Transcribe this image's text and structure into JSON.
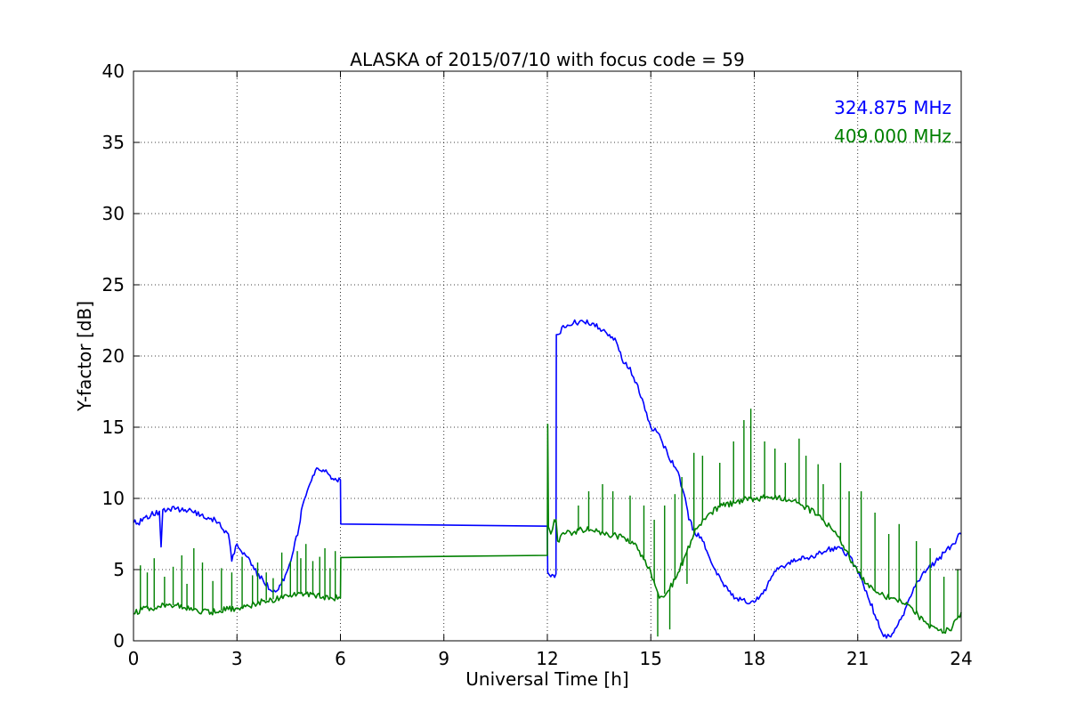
{
  "chart_data": {
    "type": "line",
    "title": "ALASKA of 2015/07/10 with focus code = 59",
    "xlabel": "Universal Time [h]",
    "ylabel": "Y-factor [dB]",
    "xlim": [
      0,
      24
    ],
    "ylim": [
      0,
      40
    ],
    "xticks": [
      0,
      3,
      6,
      9,
      12,
      15,
      18,
      21,
      24
    ],
    "yticks": [
      0,
      5,
      10,
      15,
      20,
      25,
      30,
      35,
      40
    ],
    "xtick_labels": [
      "0",
      "3",
      "6",
      "9",
      "12",
      "15",
      "18",
      "21",
      "24"
    ],
    "ytick_labels": [
      "0",
      "5",
      "10",
      "15",
      "20",
      "25",
      "30",
      "35",
      "40"
    ],
    "grid": true,
    "legend_position": "top-right",
    "series": [
      {
        "name": "324.875 MHz",
        "color": "#0000ff",
        "legend_label": "324.875 MHz",
        "points": [
          [
            0.0,
            8.3
          ],
          [
            0.25,
            8.4
          ],
          [
            0.5,
            8.8
          ],
          [
            0.75,
            9.1
          ],
          [
            0.8,
            6.6
          ],
          [
            0.85,
            9.2
          ],
          [
            1.0,
            9.3
          ],
          [
            1.25,
            9.3
          ],
          [
            1.5,
            9.2
          ],
          [
            1.75,
            9.0
          ],
          [
            2.0,
            8.9
          ],
          [
            2.25,
            8.6
          ],
          [
            2.5,
            8.3
          ],
          [
            2.6,
            7.8
          ],
          [
            2.75,
            7.5
          ],
          [
            2.85,
            5.6
          ],
          [
            3.0,
            6.8
          ],
          [
            3.25,
            6.0
          ],
          [
            3.5,
            5.0
          ],
          [
            3.75,
            4.3
          ],
          [
            4.0,
            3.5
          ],
          [
            4.2,
            3.6
          ],
          [
            4.4,
            4.6
          ],
          [
            4.6,
            6.0
          ],
          [
            4.8,
            8.0
          ],
          [
            4.9,
            9.5
          ],
          [
            5.0,
            10.2
          ],
          [
            5.2,
            11.6
          ],
          [
            5.35,
            12.1
          ],
          [
            5.5,
            12.0
          ],
          [
            5.7,
            11.6
          ],
          [
            5.85,
            11.4
          ],
          [
            6.0,
            11.3
          ],
          [
            6.01,
            8.2
          ],
          [
            12.0,
            8.05
          ],
          [
            12.01,
            4.8
          ],
          [
            12.1,
            4.5
          ],
          [
            12.25,
            4.7
          ],
          [
            12.26,
            21.5
          ],
          [
            12.5,
            22.0
          ],
          [
            12.75,
            22.3
          ],
          [
            13.0,
            22.5
          ],
          [
            13.3,
            22.3
          ],
          [
            13.6,
            21.8
          ],
          [
            13.8,
            21.5
          ],
          [
            14.0,
            21.0
          ],
          [
            14.2,
            19.5
          ],
          [
            14.4,
            19.2
          ],
          [
            14.5,
            18.5
          ],
          [
            14.75,
            17.0
          ],
          [
            15.0,
            15.0
          ],
          [
            15.25,
            14.5
          ],
          [
            15.5,
            13.0
          ],
          [
            15.75,
            12.0
          ],
          [
            16.0,
            10.0
          ],
          [
            16.1,
            8.5
          ],
          [
            16.25,
            7.8
          ],
          [
            16.5,
            7.0
          ],
          [
            16.75,
            5.5
          ],
          [
            17.0,
            4.5
          ],
          [
            17.25,
            3.5
          ],
          [
            17.5,
            3.0
          ],
          [
            17.75,
            2.7
          ],
          [
            18.0,
            2.7
          ],
          [
            18.25,
            3.3
          ],
          [
            18.5,
            4.5
          ],
          [
            18.75,
            5.2
          ],
          [
            19.0,
            5.5
          ],
          [
            19.5,
            5.8
          ],
          [
            20.0,
            6.2
          ],
          [
            20.25,
            6.5
          ],
          [
            20.5,
            6.5
          ],
          [
            20.75,
            6.0
          ],
          [
            21.0,
            4.8
          ],
          [
            21.25,
            3.5
          ],
          [
            21.5,
            1.8
          ],
          [
            21.75,
            0.3
          ],
          [
            22.0,
            0.5
          ],
          [
            22.25,
            1.5
          ],
          [
            22.5,
            3.0
          ],
          [
            22.75,
            4.2
          ],
          [
            23.0,
            5.0
          ],
          [
            23.25,
            5.5
          ],
          [
            23.5,
            6.2
          ],
          [
            23.75,
            6.8
          ],
          [
            24.0,
            7.5
          ]
        ]
      },
      {
        "name": "409.000 MHz",
        "color": "#008000",
        "legend_label": "409.000 MHz",
        "points": [
          [
            0.0,
            1.9
          ],
          [
            0.25,
            2.2
          ],
          [
            0.5,
            2.3
          ],
          [
            0.75,
            2.4
          ],
          [
            1.0,
            2.5
          ],
          [
            1.25,
            2.5
          ],
          [
            1.5,
            2.3
          ],
          [
            1.75,
            2.2
          ],
          [
            2.0,
            2.1
          ],
          [
            2.25,
            2.0
          ],
          [
            2.5,
            2.1
          ],
          [
            2.75,
            2.2
          ],
          [
            3.0,
            2.3
          ],
          [
            3.25,
            2.4
          ],
          [
            3.5,
            2.6
          ],
          [
            3.75,
            2.8
          ],
          [
            4.0,
            2.9
          ],
          [
            4.25,
            3.0
          ],
          [
            4.5,
            3.1
          ],
          [
            4.75,
            3.3
          ],
          [
            5.0,
            3.3
          ],
          [
            5.25,
            3.2
          ],
          [
            5.5,
            3.1
          ],
          [
            5.75,
            3.0
          ],
          [
            6.0,
            3.0
          ],
          [
            6.01,
            5.85
          ],
          [
            12.0,
            6.0
          ],
          [
            12.01,
            15.2
          ],
          [
            12.03,
            8.0
          ],
          [
            12.1,
            7.5
          ],
          [
            12.2,
            8.5
          ],
          [
            12.25,
            8.5
          ],
          [
            12.3,
            7.0
          ],
          [
            12.5,
            7.5
          ],
          [
            12.75,
            7.6
          ],
          [
            13.0,
            7.8
          ],
          [
            13.25,
            7.8
          ],
          [
            13.5,
            7.7
          ],
          [
            13.75,
            7.5
          ],
          [
            14.0,
            7.4
          ],
          [
            14.25,
            7.2
          ],
          [
            14.5,
            6.8
          ],
          [
            14.75,
            6.0
          ],
          [
            15.0,
            4.8
          ],
          [
            15.25,
            3.0
          ],
          [
            15.5,
            3.5
          ],
          [
            15.75,
            4.5
          ],
          [
            16.0,
            6.0
          ],
          [
            16.25,
            7.5
          ],
          [
            16.5,
            8.5
          ],
          [
            16.75,
            9.0
          ],
          [
            17.0,
            9.4
          ],
          [
            17.5,
            9.8
          ],
          [
            18.0,
            10.0
          ],
          [
            18.5,
            10.1
          ],
          [
            19.0,
            9.9
          ],
          [
            19.5,
            9.4
          ],
          [
            20.0,
            8.5
          ],
          [
            20.5,
            7.0
          ],
          [
            21.0,
            4.8
          ],
          [
            21.25,
            4.0
          ],
          [
            21.5,
            3.5
          ],
          [
            21.75,
            3.2
          ],
          [
            22.0,
            3.0
          ],
          [
            22.25,
            2.8
          ],
          [
            22.5,
            2.5
          ],
          [
            22.75,
            1.8
          ],
          [
            23.0,
            1.2
          ],
          [
            23.25,
            0.9
          ],
          [
            23.5,
            0.6
          ],
          [
            23.75,
            1.0
          ],
          [
            24.0,
            2.0
          ]
        ],
        "spikes": [
          [
            0.2,
            5.3
          ],
          [
            0.4,
            4.8
          ],
          [
            0.6,
            5.8
          ],
          [
            0.9,
            4.5
          ],
          [
            1.15,
            5.2
          ],
          [
            1.4,
            6.0
          ],
          [
            1.55,
            4.0
          ],
          [
            1.75,
            6.5
          ],
          [
            2.0,
            5.5
          ],
          [
            2.3,
            4.2
          ],
          [
            2.55,
            5.1
          ],
          [
            2.85,
            4.8
          ],
          [
            3.15,
            5.9
          ],
          [
            3.45,
            4.6
          ],
          [
            3.6,
            5.5
          ],
          [
            3.85,
            4.8
          ],
          [
            4.05,
            4.4
          ],
          [
            4.3,
            6.2
          ],
          [
            4.55,
            5.6
          ],
          [
            4.75,
            6.3
          ],
          [
            4.85,
            5.8
          ],
          [
            5.0,
            6.8
          ],
          [
            5.2,
            5.6
          ],
          [
            5.4,
            5.9
          ],
          [
            5.55,
            6.5
          ],
          [
            5.7,
            5.1
          ],
          [
            5.85,
            6.3
          ],
          [
            12.9,
            9.5
          ],
          [
            13.2,
            10.5
          ],
          [
            13.6,
            11.0
          ],
          [
            13.9,
            10.5
          ],
          [
            14.4,
            10.2
          ],
          [
            14.8,
            9.5
          ],
          [
            15.1,
            8.5
          ],
          [
            15.4,
            9.5
          ],
          [
            15.7,
            10.3
          ],
          [
            15.9,
            11.5
          ],
          [
            16.25,
            13.2
          ],
          [
            16.5,
            13.0
          ],
          [
            17.0,
            12.5
          ],
          [
            17.4,
            14.0
          ],
          [
            17.7,
            15.5
          ],
          [
            17.9,
            16.3
          ],
          [
            18.3,
            14.0
          ],
          [
            18.6,
            13.5
          ],
          [
            18.9,
            12.5
          ],
          [
            19.3,
            14.2
          ],
          [
            19.5,
            13.0
          ],
          [
            19.85,
            12.4
          ],
          [
            20.0,
            11.0
          ],
          [
            20.5,
            12.5
          ],
          [
            20.75,
            10.5
          ],
          [
            21.1,
            10.5
          ],
          [
            21.5,
            9.0
          ],
          [
            21.9,
            7.5
          ],
          [
            22.2,
            8.2
          ],
          [
            22.7,
            7.0
          ],
          [
            23.1,
            6.5
          ],
          [
            23.5,
            4.5
          ],
          [
            23.9,
            5.0
          ]
        ],
        "dips": [
          [
            15.2,
            0.3
          ],
          [
            15.55,
            0.8
          ],
          [
            16.05,
            4.0
          ]
        ]
      }
    ]
  }
}
